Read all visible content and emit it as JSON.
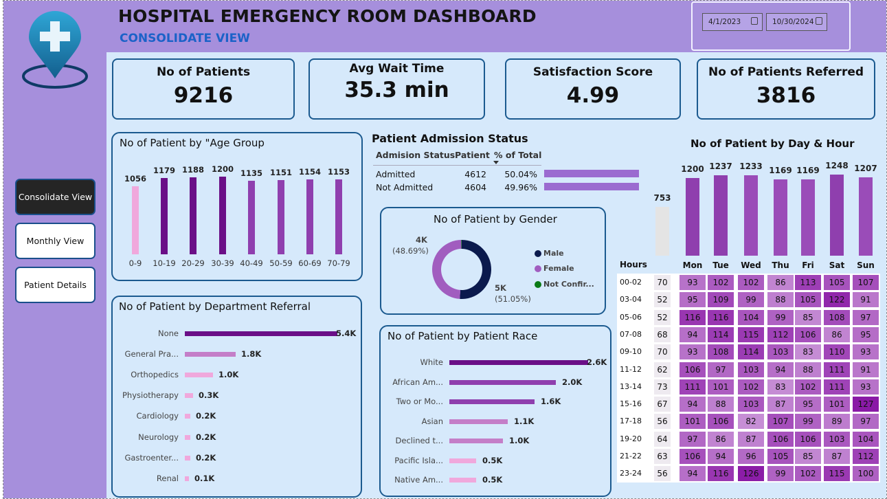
{
  "header": {
    "title": "HOSPITAL EMERGENCY ROOM DASHBOARD",
    "subtitle": "CONSOLIDATE VIEW"
  },
  "dates": {
    "start": "4/1/2023",
    "end": "10/30/2024"
  },
  "nav": [
    "Consolidate View",
    "Monthly View",
    "Patient Details"
  ],
  "kpis": [
    {
      "label": "No of Patients",
      "value": "9216"
    },
    {
      "label": "Avg Wait Time",
      "value": "35.3 min"
    },
    {
      "label": "Satisfaction Score",
      "value": "4.99"
    },
    {
      "label": "No of Patients Referred",
      "value": "3816"
    }
  ],
  "colors": {
    "bar_dark": "#6a0f87",
    "bar_mid": "#8f3fae",
    "bar_light": "#c47ec8",
    "bar_pink": "#f0a8dc",
    "admission_bar": "#9b6bd0",
    "heat_low": "#eedcf4",
    "heat_high": "#8a1aa6"
  },
  "age_group": {
    "title": "No of Patient by \"Age Group",
    "chart_data": {
      "type": "bar",
      "categories": [
        "0-9",
        "10-19",
        "20-29",
        "30-39",
        "40-49",
        "50-59",
        "60-69",
        "70-79"
      ],
      "values": [
        1056,
        1179,
        1188,
        1200,
        1135,
        1151,
        1154,
        1153
      ],
      "value_labels": [
        "1056",
        "1179",
        "1188",
        "1200",
        "1135",
        "1151",
        "1154",
        "1153"
      ]
    }
  },
  "admission": {
    "title": "Patient Admission Status",
    "headers": [
      "Admision Status",
      "Patient",
      "% of Total"
    ],
    "rows": [
      {
        "status": "Admitted",
        "patients": "4612",
        "pct": "50.04%",
        "fraction": 0.5004
      },
      {
        "status": "Not Admitted",
        "patients": "4604",
        "pct": "49.96%",
        "fraction": 0.4996
      }
    ]
  },
  "gender": {
    "title": "No of Patient by Gender",
    "chart_data": {
      "type": "pie",
      "categories": [
        "Male",
        "Female",
        "Not Confir..."
      ],
      "values": [
        0.5105,
        0.4869,
        0.0026
      ]
    },
    "label_female": "4K",
    "label_female_pct": "(48.69%)",
    "label_male": "5K",
    "label_male_pct": "(51.05%)",
    "legend": [
      "Male",
      "Female",
      "Not Confir..."
    ],
    "legend_colors": [
      "#0b1a4d",
      "#a15dbf",
      "#0a7a16"
    ]
  },
  "department": {
    "title": "No of Patient by Department Referral",
    "chart_data": {
      "type": "bar",
      "categories": [
        "None",
        "General Pra...",
        "Orthopedics",
        "Physiotherapy",
        "Cardiology",
        "Neurology",
        "Gastroenter...",
        "Renal"
      ],
      "values": [
        5.4,
        1.8,
        1.0,
        0.3,
        0.2,
        0.2,
        0.2,
        0.1
      ],
      "value_labels": [
        "5.4K",
        "1.8K",
        "1.0K",
        "0.3K",
        "0.2K",
        "0.2K",
        "0.2K",
        "0.1K"
      ]
    }
  },
  "race": {
    "title": "No of Patient by Patient Race",
    "chart_data": {
      "type": "bar",
      "categories": [
        "White",
        "African Am...",
        "Two or Mo...",
        "Asian",
        "Declined t...",
        "Pacific Isla...",
        "Native Am..."
      ],
      "values": [
        2.6,
        2.0,
        1.6,
        1.1,
        1.0,
        0.5,
        0.5
      ],
      "value_labels": [
        "2.6K",
        "2.0K",
        "1.6K",
        "1.1K",
        "1.0K",
        "0.5K",
        "0.5K"
      ]
    }
  },
  "dayhour": {
    "title": "No of Patient by Day & Hour",
    "hours_label": "Hours",
    "chart_data": {
      "type": "heatmap",
      "day_totals": [
        753,
        1200,
        1237,
        1233,
        1169,
        1169,
        1248,
        1207
      ],
      "day_total_labels": [
        "753",
        "1200",
        "1237",
        "1233",
        "1169",
        "1169",
        "1248",
        "1207"
      ],
      "days": [
        "",
        "Mon",
        "Tue",
        "Wed",
        "Thu",
        "Fri",
        "Sat",
        "Sun"
      ],
      "hours": [
        "00-02",
        "03-04",
        "05-06",
        "07-08",
        "09-10",
        "11-12",
        "13-14",
        "15-16",
        "17-18",
        "19-20",
        "21-22",
        "23-24"
      ],
      "matrix": [
        [
          70,
          93,
          102,
          102,
          86,
          113,
          105,
          107
        ],
        [
          52,
          95,
          109,
          99,
          88,
          105,
          122,
          91
        ],
        [
          52,
          116,
          116,
          104,
          99,
          85,
          108,
          97
        ],
        [
          68,
          94,
          114,
          115,
          112,
          106,
          86,
          95
        ],
        [
          70,
          93,
          108,
          114,
          103,
          83,
          110,
          93
        ],
        [
          62,
          106,
          97,
          103,
          94,
          88,
          111,
          91
        ],
        [
          73,
          111,
          101,
          102,
          83,
          102,
          111,
          93
        ],
        [
          67,
          94,
          88,
          103,
          87,
          95,
          101,
          127
        ],
        [
          56,
          101,
          106,
          82,
          107,
          99,
          89,
          97
        ],
        [
          64,
          97,
          86,
          87,
          106,
          106,
          103,
          104
        ],
        [
          63,
          106,
          94,
          96,
          105,
          85,
          87,
          112
        ],
        [
          56,
          94,
          116,
          126,
          99,
          102,
          115,
          100
        ]
      ]
    }
  }
}
